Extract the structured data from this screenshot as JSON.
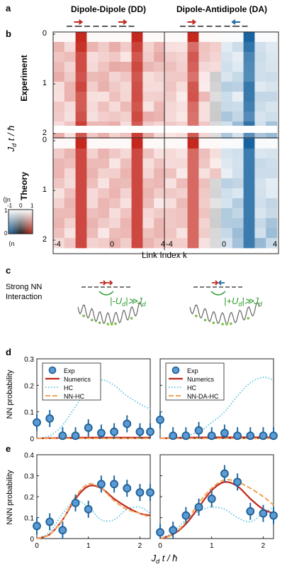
{
  "panels": {
    "a": "a",
    "b": "b",
    "c": "c",
    "d": "d",
    "e": "e"
  },
  "panel_a": {
    "title_left": "Dipole-Dipole (DD)",
    "title_right": "Dipole-Antidipole (DA)"
  },
  "panel_b": {
    "row_labels": [
      "Experiment",
      "Theory"
    ],
    "y_axis_label": "J_d t / ħ",
    "y_ticks": [
      "0",
      "1",
      "2"
    ],
    "x_ticks": [
      "-4",
      "0",
      "4"
    ],
    "x_axis_label": "Link Index  k",
    "legend": {
      "y_label": "⟨|n^d_k|⟩",
      "x_label": "⟨n^d_k⟩/⟨|n^d_k|⟩",
      "ticks_y": [
        "1",
        "0"
      ],
      "ticks_x": [
        "-1",
        "0",
        "1"
      ]
    }
  },
  "panel_c": {
    "label": "Strong NN Interaction",
    "line1": "Strong NN",
    "line2": "Interaction",
    "eq_left": "|-U_d| ≫ J_d",
    "eq_right": "|+U_d| ≫ J_d"
  },
  "chart_data": [
    {
      "type": "scatter",
      "panel": "d-left",
      "ylabel": "NN probability",
      "xlim": [
        0,
        2.2
      ],
      "ylim": [
        0,
        0.3
      ],
      "yticks": [
        "0",
        "0.1",
        "0.2",
        "0.3"
      ],
      "legend": [
        "Exp",
        "Numerics",
        "HC",
        "NN-HC"
      ],
      "series": [
        {
          "name": "Exp",
          "x": [
            0,
            0.25,
            0.5,
            0.75,
            1.0,
            1.25,
            1.5,
            1.75,
            2.0,
            2.2
          ],
          "y": [
            0.06,
            0.075,
            0.01,
            0.01,
            0.04,
            0.02,
            0.025,
            0.055,
            0.025,
            0.025
          ]
        },
        {
          "name": "Numerics",
          "x": [
            0,
            0.5,
            1,
            1.5,
            2,
            2.2
          ],
          "y": [
            0,
            0.002,
            0.003,
            0.003,
            0.003,
            0.003
          ]
        },
        {
          "name": "HC",
          "x": [
            0,
            0.25,
            0.5,
            0.75,
            1.0,
            1.25,
            1.5,
            1.75,
            2.0,
            2.2
          ],
          "y": [
            0,
            0.01,
            0.05,
            0.12,
            0.19,
            0.22,
            0.2,
            0.16,
            0.13,
            0.11
          ]
        },
        {
          "name": "NN-HC",
          "x": [
            0,
            0.5,
            1,
            1.5,
            2,
            2.2
          ],
          "y": [
            0,
            0,
            0,
            0,
            0,
            0
          ]
        }
      ]
    },
    {
      "type": "scatter",
      "panel": "d-right",
      "xlim": [
        0,
        2.2
      ],
      "ylim": [
        0,
        0.3
      ],
      "legend": [
        "Exp",
        "Numerics",
        "HC",
        "NN-DA-HC"
      ],
      "series": [
        {
          "name": "Exp",
          "x": [
            0,
            0.25,
            0.5,
            0.75,
            1.0,
            1.25,
            1.5,
            1.75,
            2.0,
            2.2
          ],
          "y": [
            0.07,
            0.01,
            0.01,
            0.03,
            0.01,
            0.02,
            0.01,
            0.01,
            0.01,
            0.01
          ]
        },
        {
          "name": "Numerics",
          "x": [
            0,
            0.5,
            1,
            1.5,
            2,
            2.2
          ],
          "y": [
            0,
            0.003,
            0.004,
            0.004,
            0.004,
            0.004
          ]
        },
        {
          "name": "HC",
          "x": [
            0,
            0.25,
            0.5,
            0.75,
            1.0,
            1.25,
            1.5,
            1.75,
            2.0,
            2.2
          ],
          "y": [
            0,
            0,
            0.01,
            0.025,
            0.06,
            0.1,
            0.16,
            0.21,
            0.23,
            0.22
          ]
        },
        {
          "name": "NN-DA-HC",
          "x": [
            0,
            0.5,
            1,
            1.5,
            2,
            2.2
          ],
          "y": [
            0,
            0,
            0,
            0,
            0,
            0
          ]
        }
      ]
    },
    {
      "type": "scatter",
      "panel": "e-left",
      "ylabel": "NNN probability",
      "xlabel": "J_d t / ħ",
      "xlim": [
        0,
        2.2
      ],
      "ylim": [
        0,
        0.4
      ],
      "yticks": [
        "0",
        "0.1",
        "0.2",
        "0.3",
        "0.4"
      ],
      "xticks": [
        "0",
        "1",
        "2"
      ],
      "series": [
        {
          "name": "Exp",
          "x": [
            0,
            0.25,
            0.5,
            0.75,
            1.0,
            1.25,
            1.5,
            1.75,
            2.0,
            2.2
          ],
          "y": [
            0.06,
            0.08,
            0.04,
            0.17,
            0.14,
            0.26,
            0.26,
            0.24,
            0.22,
            0.22
          ]
        },
        {
          "name": "Numerics",
          "x": [
            0,
            0.25,
            0.5,
            0.75,
            1.0,
            1.25,
            1.5,
            1.75,
            2.0,
            2.2
          ],
          "y": [
            0,
            0.02,
            0.09,
            0.19,
            0.25,
            0.24,
            0.19,
            0.15,
            0.12,
            0.11
          ]
        },
        {
          "name": "HC",
          "x": [
            0,
            0.25,
            0.5,
            0.75,
            1.0,
            1.25,
            1.5,
            1.75,
            2.0,
            2.2
          ],
          "y": [
            0,
            0.03,
            0.12,
            0.18,
            0.15,
            0.09,
            0.09,
            0.14,
            0.15,
            0.12
          ]
        },
        {
          "name": "NN-HC",
          "x": [
            0,
            0.25,
            0.5,
            0.75,
            1.0,
            1.25,
            1.5,
            1.75,
            2.0,
            2.2
          ],
          "y": [
            0,
            0.02,
            0.09,
            0.2,
            0.26,
            0.24,
            0.18,
            0.14,
            0.12,
            0.1
          ]
        }
      ]
    },
    {
      "type": "scatter",
      "panel": "e-right",
      "xlabel": "J_d t / ħ",
      "xlim": [
        0,
        2.2
      ],
      "ylim": [
        0,
        0.4
      ],
      "xticks": [
        "0",
        "1",
        "2"
      ],
      "series": [
        {
          "name": "Exp",
          "x": [
            0,
            0.25,
            0.5,
            0.75,
            1.0,
            1.25,
            1.5,
            1.75,
            2.0,
            2.2
          ],
          "y": [
            0.03,
            0.04,
            0.11,
            0.15,
            0.19,
            0.31,
            0.27,
            0.13,
            0.12,
            0.11
          ]
        },
        {
          "name": "Numerics",
          "x": [
            0,
            0.25,
            0.5,
            0.75,
            1.0,
            1.25,
            1.5,
            1.75,
            2.0,
            2.2
          ],
          "y": [
            0,
            0.02,
            0.07,
            0.15,
            0.23,
            0.27,
            0.25,
            0.19,
            0.14,
            0.12
          ]
        },
        {
          "name": "HC",
          "x": [
            0,
            0.25,
            0.5,
            0.75,
            1.0,
            1.25,
            1.5,
            1.75,
            2.0,
            2.2
          ],
          "y": [
            0,
            0.03,
            0.09,
            0.13,
            0.15,
            0.14,
            0.1,
            0.08,
            0.12,
            0.15
          ]
        },
        {
          "name": "NN-DA-HC",
          "x": [
            0,
            0.25,
            0.5,
            0.75,
            1.0,
            1.25,
            1.5,
            1.75,
            2.0,
            2.2
          ],
          "y": [
            0,
            0.02,
            0.08,
            0.17,
            0.24,
            0.28,
            0.27,
            0.24,
            0.2,
            0.16
          ]
        }
      ]
    }
  ],
  "colors": {
    "red": "#c0281c",
    "blue": "#1f6aa5",
    "exp": "#4f8fc4",
    "hc": "#5bc3e0",
    "nn": "#f2a257"
  }
}
